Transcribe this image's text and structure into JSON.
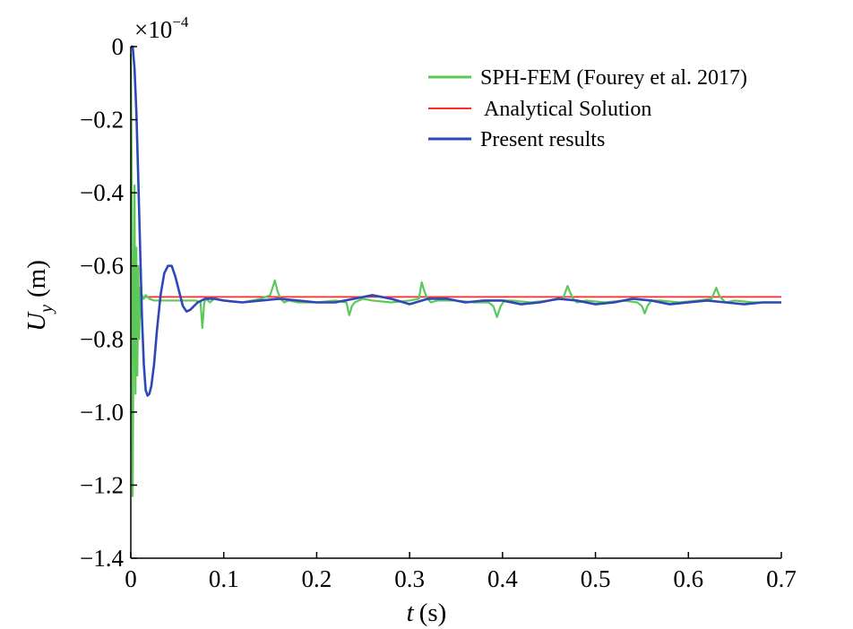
{
  "chart_data": {
    "type": "line",
    "xlabel_var": "t",
    "xlabel_unit": "(s)",
    "ylabel_var": "U",
    "ylabel_sub": "y",
    "ylabel_unit": "(m)",
    "y_multiplier_base": "×10",
    "y_multiplier_exp": "−4",
    "xlim": [
      0,
      0.7
    ],
    "ylim": [
      -1.4,
      0
    ],
    "x_ticks": [
      0,
      0.1,
      0.2,
      0.3,
      0.4,
      0.5,
      0.6,
      0.7
    ],
    "x_tick_labels": [
      "0",
      "0.1",
      "0.2",
      "0.3",
      "0.4",
      "0.5",
      "0.6",
      "0.7"
    ],
    "y_ticks": [
      0,
      -0.2,
      -0.4,
      -0.6,
      -0.8,
      -1.0,
      -1.2,
      -1.4
    ],
    "y_tick_labels": [
      "0",
      "−0.2",
      "−0.4",
      "−0.6",
      "−0.8",
      "−1.0",
      "−1.2",
      "−1.4"
    ],
    "grid": false,
    "legend_position": "top-right",
    "series": [
      {
        "name": "SPH-FEM (Fourey et al. 2017)",
        "color": "#5cc85a",
        "x": [
          0,
          0.001,
          0.002,
          0.003,
          0.004,
          0.005,
          0.006,
          0.007,
          0.008,
          0.009,
          0.01,
          0.011,
          0.012,
          0.014,
          0.016,
          0.02,
          0.025,
          0.03,
          0.04,
          0.05,
          0.06,
          0.07,
          0.075,
          0.077,
          0.079,
          0.081,
          0.085,
          0.09,
          0.1,
          0.12,
          0.14,
          0.15,
          0.155,
          0.158,
          0.161,
          0.165,
          0.17,
          0.18,
          0.2,
          0.22,
          0.232,
          0.235,
          0.238,
          0.241,
          0.245,
          0.25,
          0.26,
          0.28,
          0.3,
          0.31,
          0.313,
          0.316,
          0.319,
          0.323,
          0.33,
          0.35,
          0.37,
          0.385,
          0.39,
          0.394,
          0.398,
          0.402,
          0.41,
          0.43,
          0.45,
          0.465,
          0.47,
          0.473,
          0.476,
          0.48,
          0.49,
          0.51,
          0.53,
          0.545,
          0.55,
          0.553,
          0.556,
          0.56,
          0.57,
          0.59,
          0.61,
          0.625,
          0.63,
          0.633,
          0.636,
          0.64,
          0.65,
          0.67,
          0.7
        ],
        "y": [
          -0.02,
          -0.35,
          -1.23,
          -0.7,
          -0.38,
          -0.95,
          -0.55,
          -0.9,
          -0.6,
          -0.8,
          -0.66,
          -0.74,
          -0.68,
          -0.69,
          -0.68,
          -0.69,
          -0.695,
          -0.695,
          -0.695,
          -0.695,
          -0.695,
          -0.695,
          -0.7,
          -0.77,
          -0.7,
          -0.69,
          -0.7,
          -0.69,
          -0.695,
          -0.7,
          -0.69,
          -0.68,
          -0.64,
          -0.67,
          -0.69,
          -0.7,
          -0.695,
          -0.7,
          -0.7,
          -0.695,
          -0.7,
          -0.735,
          -0.71,
          -0.7,
          -0.695,
          -0.69,
          -0.695,
          -0.7,
          -0.695,
          -0.69,
          -0.645,
          -0.67,
          -0.69,
          -0.7,
          -0.695,
          -0.695,
          -0.7,
          -0.7,
          -0.71,
          -0.74,
          -0.71,
          -0.695,
          -0.695,
          -0.7,
          -0.695,
          -0.69,
          -0.655,
          -0.675,
          -0.69,
          -0.7,
          -0.695,
          -0.7,
          -0.695,
          -0.7,
          -0.71,
          -0.73,
          -0.71,
          -0.695,
          -0.695,
          -0.7,
          -0.695,
          -0.69,
          -0.66,
          -0.68,
          -0.69,
          -0.7,
          -0.695,
          -0.7,
          -0.7
        ]
      },
      {
        "name": "Analytical Solution",
        "color": "#ff2b2b",
        "x": [
          0,
          0.7
        ],
        "y": [
          -0.685,
          -0.685
        ]
      },
      {
        "name": "Present results",
        "color": "#2e48b8",
        "x": [
          0,
          0.002,
          0.004,
          0.006,
          0.008,
          0.01,
          0.012,
          0.014,
          0.016,
          0.018,
          0.02,
          0.022,
          0.025,
          0.028,
          0.032,
          0.036,
          0.04,
          0.044,
          0.048,
          0.052,
          0.056,
          0.06,
          0.064,
          0.068,
          0.072,
          0.08,
          0.09,
          0.1,
          0.12,
          0.14,
          0.16,
          0.18,
          0.2,
          0.22,
          0.24,
          0.26,
          0.28,
          0.3,
          0.32,
          0.34,
          0.36,
          0.38,
          0.4,
          0.42,
          0.44,
          0.46,
          0.48,
          0.5,
          0.52,
          0.54,
          0.56,
          0.58,
          0.6,
          0.62,
          0.64,
          0.66,
          0.68,
          0.7
        ],
        "y": [
          0,
          0,
          -0.06,
          -0.18,
          -0.36,
          -0.55,
          -0.74,
          -0.87,
          -0.94,
          -0.955,
          -0.95,
          -0.93,
          -0.87,
          -0.78,
          -0.68,
          -0.62,
          -0.6,
          -0.6,
          -0.63,
          -0.67,
          -0.71,
          -0.725,
          -0.72,
          -0.71,
          -0.7,
          -0.69,
          -0.69,
          -0.695,
          -0.7,
          -0.695,
          -0.69,
          -0.695,
          -0.7,
          -0.7,
          -0.69,
          -0.68,
          -0.69,
          -0.705,
          -0.69,
          -0.69,
          -0.7,
          -0.695,
          -0.695,
          -0.705,
          -0.7,
          -0.69,
          -0.695,
          -0.705,
          -0.7,
          -0.69,
          -0.695,
          -0.705,
          -0.7,
          -0.695,
          -0.7,
          -0.705,
          -0.7,
          -0.7
        ]
      }
    ]
  }
}
